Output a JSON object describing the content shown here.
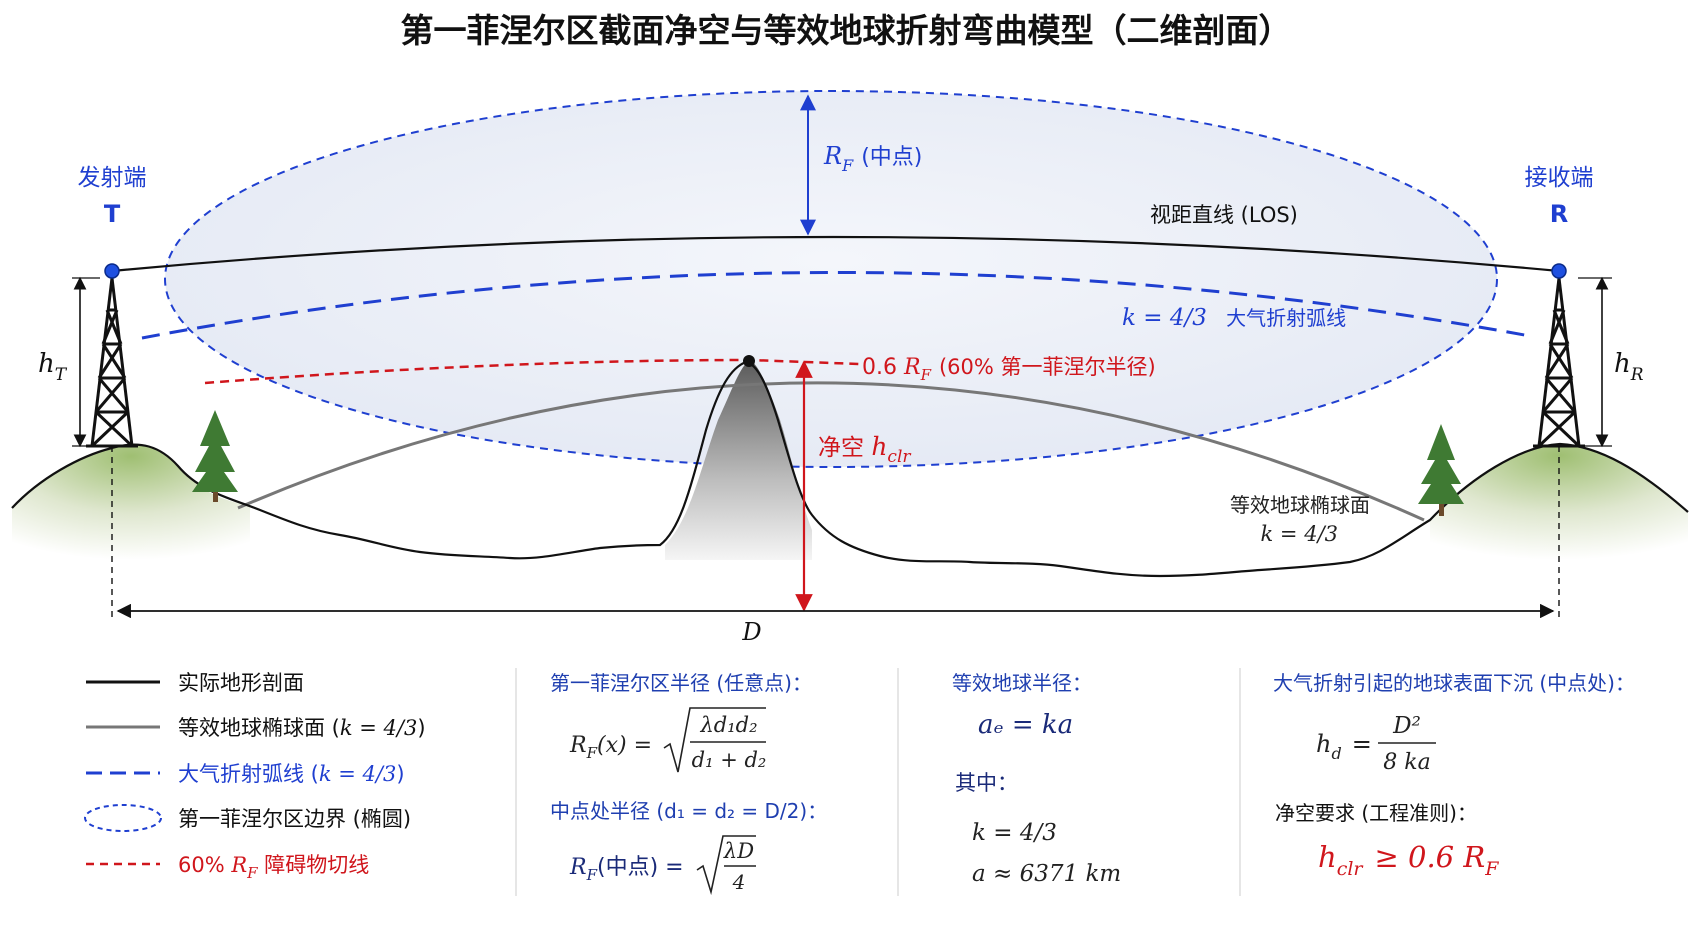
{
  "title": "第一菲涅尔区截面净空与等效地球折射弯曲模型（二维剖面）",
  "transmitter": {
    "label": "发射端",
    "letter": "T",
    "height_label": "h",
    "height_sub": "T"
  },
  "receiver": {
    "label": "接收端",
    "letter": "R",
    "height_label": "h",
    "height_sub": "R"
  },
  "los_label": "视距直线 (LOS)",
  "rf_mid_label": {
    "sym": "R",
    "sub": "F",
    "text": "(中点)"
  },
  "refraction_label": {
    "math": "k = 4/3",
    "text": "大气折射弧线"
  },
  "obstacle_line_label": {
    "pre": "0.6 ",
    "sym": "R",
    "sub": "F",
    "text": "(60% 第一菲涅尔半径)"
  },
  "clearance_label": {
    "text": "净空 ",
    "sym": "h",
    "sub": "clr"
  },
  "earth_label": {
    "text": "等效地球椭球面",
    "math": "k = 4/3"
  },
  "distance_label": "D",
  "legend": [
    {
      "text": "实际地形剖面",
      "math": "",
      "style": "solid-black"
    },
    {
      "text": "等效地球椭球面 (",
      "math": "k = 4/3",
      "tail": ")",
      "style": "solid-gray"
    },
    {
      "text": "大气折射弧线 (",
      "math": "k = 4/3",
      "tail": ")",
      "style": "dashed-blue"
    },
    {
      "text": "第一菲涅尔区边界 (椭圆)",
      "math": "",
      "style": "ellipse-blue"
    },
    {
      "text": "60% ",
      "math": "R",
      "sub": "F",
      "tail": " 障碍物切线",
      "style": "dashed-red"
    }
  ],
  "panels": {
    "fresnel": {
      "title": "第一菲涅尔区半径 (任意点)：",
      "formula_lhs": "R",
      "formula_lhs_sub": "F",
      "formula_lhs_arg": "(x) =",
      "formula_num": "λd₁d₂",
      "formula_den": "d₁ + d₂",
      "mid_title": "中点处半径 (d₁ = d₂ = D/2)：",
      "mid_lhs": "R",
      "mid_lhs_sub": "F",
      "mid_lhs_arg": "(中点) =",
      "mid_num": "λD",
      "mid_den": "4"
    },
    "earth": {
      "title": "等效地球半径：",
      "formula": "aₑ = ka",
      "where": "其中：",
      "k_value": "k = 4/3",
      "a_value": "a ≈ 6371 km"
    },
    "bulge": {
      "title": "大气折射引起的地球表面下沉 (中点处)：",
      "lhs": "h",
      "lhs_sub": "d",
      "num": "D²",
      "den": "8 ka",
      "req_title": "净空要求 (工程准则)：",
      "req_lhs": "h",
      "req_lhs_sub": "clr",
      "req_rhs": "≥ 0.6 R",
      "req_rhs_sub": "F"
    }
  },
  "colors": {
    "blue": "#1f3fd0",
    "red": "#d0161c",
    "navy": "#1a2a78",
    "terrain": "#111111",
    "earth": "#777777",
    "tree": "#3f7a33",
    "hill": "#b9cf9a"
  }
}
